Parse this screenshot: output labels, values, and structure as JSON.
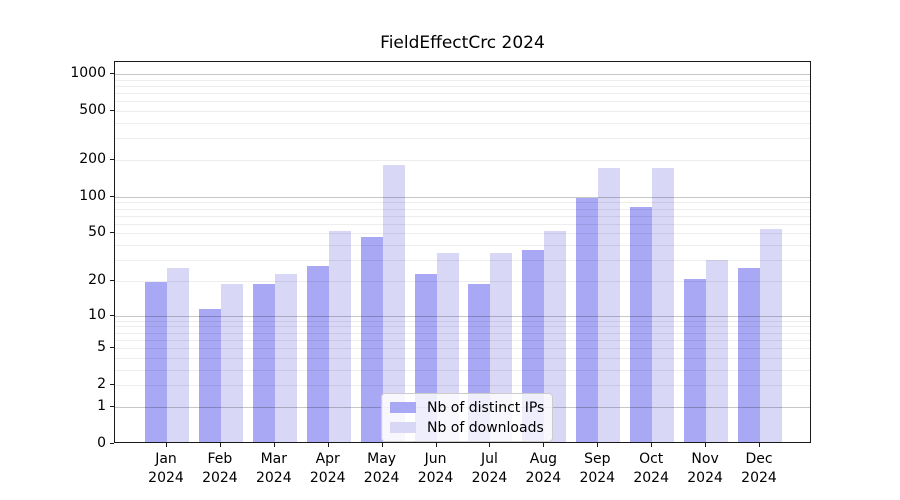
{
  "chart_data": {
    "type": "bar",
    "title": "FieldEffectCrc 2024",
    "categories": [
      "Jan",
      "Feb",
      "Mar",
      "Apr",
      "May",
      "Jun",
      "Jul",
      "Aug",
      "Sep",
      "Oct",
      "Nov",
      "Dec"
    ],
    "x_sublabel": "2024",
    "series": [
      {
        "name": "Nb of distinct IPs",
        "color": "#a8a8f4",
        "values": [
          19,
          11,
          18,
          26,
          45,
          22,
          18,
          35,
          95,
          80,
          20,
          25
        ]
      },
      {
        "name": "Nb of downloads",
        "color": "#d8d8f6",
        "values": [
          25,
          18,
          22,
          50,
          175,
          33,
          33,
          50,
          165,
          165,
          29,
          52
        ]
      }
    ],
    "xlabel": "",
    "ylabel": "",
    "scale": "log10(value+1)",
    "ylim": [
      0,
      1252
    ],
    "y_ticks": [
      0,
      1,
      2,
      5,
      10,
      20,
      50,
      100,
      200,
      500,
      1000
    ],
    "y_major_gridlines": [
      1,
      10,
      100,
      1000
    ],
    "y_minor_gridlines": [
      2,
      3,
      4,
      5,
      6,
      7,
      8,
      9,
      20,
      30,
      40,
      50,
      60,
      70,
      80,
      90,
      200,
      300,
      400,
      500,
      600,
      700,
      800,
      900
    ],
    "grid": "on, drawn above bars",
    "legend_position": "lower center",
    "colors": {
      "spine": "#1a1a1a",
      "legend_border": "#cccccc",
      "background": "#ffffff"
    }
  }
}
